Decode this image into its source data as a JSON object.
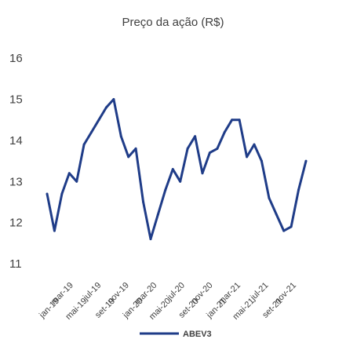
{
  "chart_data": {
    "type": "line",
    "title": "Preço da ação (R$)",
    "xlabel": "",
    "ylabel": "",
    "ylim": [
      11,
      16.5
    ],
    "yticks": [
      11,
      12,
      13,
      14,
      15,
      16
    ],
    "grid": false,
    "legend_position": "bottom",
    "line_color": "#1F3C88",
    "x_ticklabels": [
      "jan-19",
      "mar-19",
      "mai-19",
      "jul-19",
      "set-19",
      "nov-19",
      "jan-20",
      "mar-20",
      "mai-20",
      "jul-20",
      "set-20",
      "nov-20",
      "jan-21",
      "mar-21",
      "mai-21",
      "jul-21",
      "set-21",
      "nov-21"
    ],
    "series": [
      {
        "name": "ABEV3",
        "x": [
          "jan-19",
          "fev-19",
          "mar-19",
          "abr-19",
          "mai-19",
          "jun-19",
          "jul-19",
          "ago-19",
          "set-19",
          "out-19",
          "nov-19",
          "dez-19",
          "jan-20",
          "fev-20",
          "mar-20",
          "abr-20",
          "mai-20",
          "jun-20",
          "jul-20",
          "ago-20",
          "set-20",
          "out-20",
          "nov-20",
          "dez-20",
          "jan-21",
          "fev-21",
          "mar-21",
          "abr-21",
          "mai-21",
          "jun-21",
          "jul-21",
          "ago-21",
          "set-21",
          "out-21",
          "nov-21",
          "dez-21"
        ],
        "values": [
          12.7,
          11.8,
          12.7,
          13.2,
          13.0,
          13.9,
          14.2,
          14.5,
          14.8,
          15.0,
          14.1,
          13.6,
          13.8,
          12.5,
          11.6,
          12.2,
          12.8,
          13.3,
          13.0,
          13.8,
          14.1,
          13.2,
          13.7,
          13.8,
          14.2,
          14.5,
          14.5,
          13.6,
          13.9,
          13.5,
          12.6,
          12.2,
          11.8,
          11.9,
          12.8,
          13.5
        ]
      }
    ]
  }
}
